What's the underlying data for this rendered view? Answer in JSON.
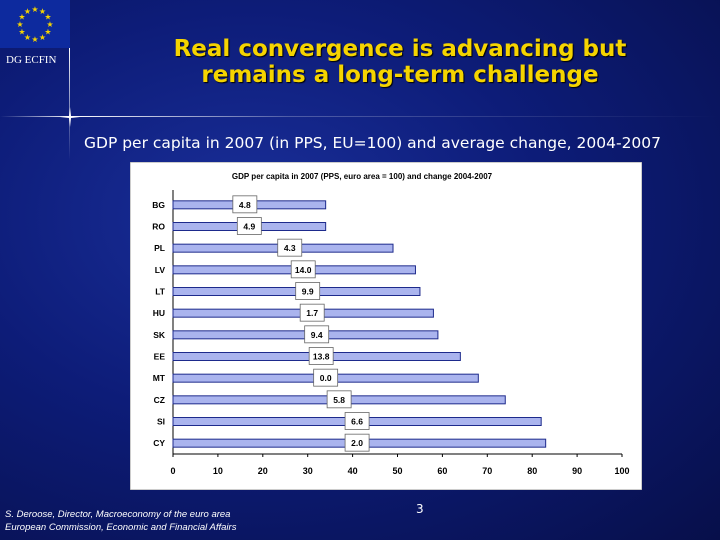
{
  "header": {
    "org_label": "DG ECFIN",
    "title": "Real convergence is advancing but remains a long-term challenge",
    "subtitle": "GDP per capita in 2007 (in PPS, EU=100) and average change, 2004-2007"
  },
  "footer": {
    "author_line": "S. Deroose, Director, Macroeconomy of the euro area",
    "org_line": "European Commission, Economic and Financial Affairs",
    "page_number": "3"
  },
  "colors": {
    "title": "#f5d400",
    "bar_fill": "#aab4ee",
    "bar_stroke": "#1d2a8c",
    "flag_blue": "#0d2a9e",
    "flag_star": "#f5d400"
  },
  "chart_data": {
    "type": "bar",
    "orientation": "horizontal",
    "title": "GDP per capita in 2007 (PPS, euro area = 100) and change 2004-2007",
    "categories": [
      "BG",
      "RO",
      "PL",
      "LV",
      "LT",
      "HU",
      "SK",
      "EE",
      "MT",
      "CZ",
      "SI",
      "CY"
    ],
    "values": [
      34,
      34,
      49,
      54,
      55,
      58,
      59,
      64,
      68,
      74,
      82,
      83
    ],
    "change_labels": [
      "4.8",
      "4.9",
      "4.3",
      "14.0",
      "9.9",
      "1.7",
      "9.4",
      "13.8",
      "0.0",
      "5.8",
      "6.6",
      "2.0"
    ],
    "change_label_at": [
      16,
      17,
      26,
      29,
      30,
      31,
      32,
      33,
      34,
      37,
      41,
      41
    ],
    "xlim": [
      0,
      100
    ],
    "xticks": [
      0,
      10,
      20,
      30,
      40,
      50,
      60,
      70,
      80,
      90,
      100
    ],
    "grid": false,
    "legend": "none"
  }
}
